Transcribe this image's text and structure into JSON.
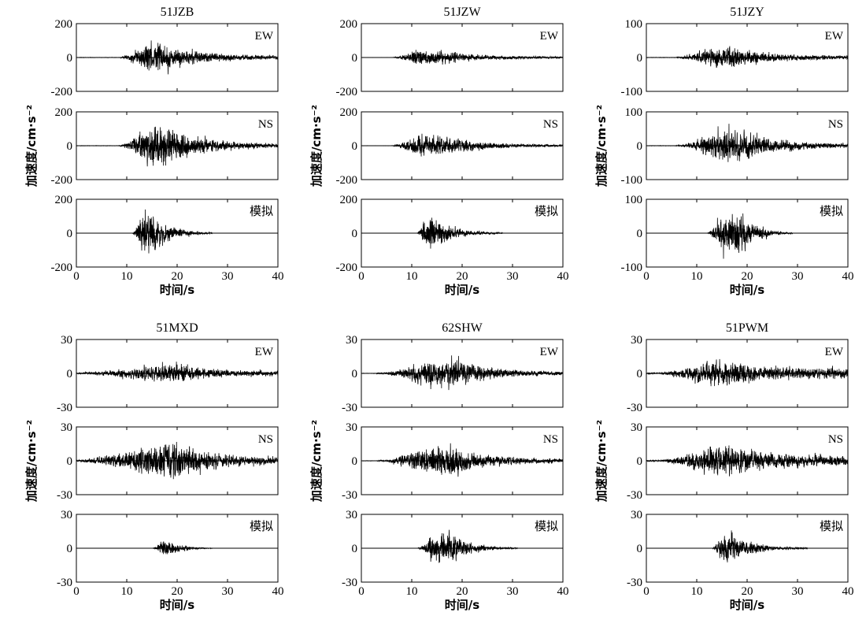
{
  "chart_data": [
    {
      "type": "line",
      "title": "51JZB",
      "xlabel": "时间/s",
      "ylabel": "加速度/cm·s⁻²",
      "xlim": [
        0,
        40
      ],
      "xticks": [
        0,
        10,
        20,
        30,
        40
      ],
      "series": [
        {
          "name": "EW",
          "ylim": [
            -200,
            200
          ],
          "yticks": [
            -200,
            0,
            200
          ],
          "envelope": {
            "onset": 8.5,
            "rise_end": 14,
            "peak": 16,
            "decay_end": 40,
            "amp_max": 135,
            "amp_tail": 12
          }
        },
        {
          "name": "NS",
          "ylim": [
            -200,
            200
          ],
          "yticks": [
            -200,
            0,
            200
          ],
          "envelope": {
            "onset": 8.5,
            "rise_end": 14,
            "peak": 17,
            "decay_end": 40,
            "amp_max": 185,
            "amp_tail": 12
          }
        },
        {
          "name": "模拟",
          "ylim": [
            -200,
            200
          ],
          "yticks": [
            -200,
            0,
            200
          ],
          "envelope": {
            "onset": 11,
            "rise_end": 13,
            "peak": 15,
            "decay_end": 27,
            "amp_max": 170,
            "amp_tail": 0
          }
        }
      ]
    },
    {
      "type": "line",
      "title": "51JZW",
      "xlabel": "时间/s",
      "ylabel": "加速度/cm·s⁻²",
      "xlim": [
        0,
        40
      ],
      "xticks": [
        0,
        10,
        20,
        30,
        40
      ],
      "series": [
        {
          "name": "EW",
          "ylim": [
            -200,
            200
          ],
          "yticks": [
            -200,
            0,
            200
          ],
          "envelope": {
            "onset": 6,
            "rise_end": 11,
            "peak": 14,
            "decay_end": 40,
            "amp_max": 70,
            "amp_tail": 6
          }
        },
        {
          "name": "NS",
          "ylim": [
            -200,
            200
          ],
          "yticks": [
            -200,
            0,
            200
          ],
          "envelope": {
            "onset": 6,
            "rise_end": 11,
            "peak": 15,
            "decay_end": 40,
            "amp_max": 95,
            "amp_tail": 6
          }
        },
        {
          "name": "模拟",
          "ylim": [
            -200,
            200
          ],
          "yticks": [
            -200,
            0,
            200
          ],
          "envelope": {
            "onset": 11,
            "rise_end": 12.5,
            "peak": 14,
            "decay_end": 28,
            "amp_max": 130,
            "amp_tail": 0
          }
        }
      ]
    },
    {
      "type": "line",
      "title": "51JZY",
      "xlabel": "时间/s",
      "ylabel": "加速度/cm·s⁻²",
      "xlim": [
        0,
        40
      ],
      "xticks": [
        0,
        10,
        20,
        30,
        40
      ],
      "series": [
        {
          "name": "EW",
          "ylim": [
            -100,
            100
          ],
          "yticks": [
            -100,
            0,
            100
          ],
          "envelope": {
            "onset": 6,
            "rise_end": 13,
            "peak": 17,
            "decay_end": 40,
            "amp_max": 45,
            "amp_tail": 7
          }
        },
        {
          "name": "NS",
          "ylim": [
            -100,
            100
          ],
          "yticks": [
            -100,
            0,
            100
          ],
          "envelope": {
            "onset": 6,
            "rise_end": 14,
            "peak": 19,
            "decay_end": 40,
            "amp_max": 68,
            "amp_tail": 7
          }
        },
        {
          "name": "模拟",
          "ylim": [
            -100,
            100
          ],
          "yticks": [
            -100,
            0,
            100
          ],
          "envelope": {
            "onset": 12,
            "rise_end": 15,
            "peak": 19,
            "decay_end": 29,
            "amp_max": 88,
            "amp_tail": 0
          }
        }
      ]
    },
    {
      "type": "line",
      "title": "51MXD",
      "xlabel": "时间/s",
      "ylabel": "加速度/cm·s⁻²",
      "xlim": [
        0,
        40
      ],
      "xticks": [
        0,
        10,
        20,
        30,
        40
      ],
      "series": [
        {
          "name": "EW",
          "ylim": [
            -30,
            30
          ],
          "yticks": [
            -30,
            0,
            30
          ],
          "envelope": {
            "onset": 0,
            "rise_end": 16,
            "peak": 20,
            "decay_end": 40,
            "amp_max": 12,
            "amp_tail": 3
          }
        },
        {
          "name": "NS",
          "ylim": [
            -30,
            30
          ],
          "yticks": [
            -30,
            0,
            30
          ],
          "envelope": {
            "onset": 0,
            "rise_end": 16,
            "peak": 21,
            "decay_end": 40,
            "amp_max": 24,
            "amp_tail": 4
          }
        },
        {
          "name": "模拟",
          "ylim": [
            -30,
            30
          ],
          "yticks": [
            -30,
            0,
            30
          ],
          "envelope": {
            "onset": 15,
            "rise_end": 17,
            "peak": 19,
            "decay_end": 27,
            "amp_max": 10,
            "amp_tail": 0
          }
        }
      ]
    },
    {
      "type": "line",
      "title": "62SHW",
      "xlabel": "时间/s",
      "ylabel": "加速度/cm·s⁻²",
      "xlim": [
        0,
        40
      ],
      "xticks": [
        0,
        10,
        20,
        30,
        40
      ],
      "series": [
        {
          "name": "EW",
          "ylim": [
            -30,
            30
          ],
          "yticks": [
            -30,
            0,
            30
          ],
          "envelope": {
            "onset": 3,
            "rise_end": 14,
            "peak": 19,
            "decay_end": 40,
            "amp_max": 18,
            "amp_tail": 2
          }
        },
        {
          "name": "NS",
          "ylim": [
            -30,
            30
          ],
          "yticks": [
            -30,
            0,
            30
          ],
          "envelope": {
            "onset": 3,
            "rise_end": 14,
            "peak": 18,
            "decay_end": 40,
            "amp_max": 20,
            "amp_tail": 2
          }
        },
        {
          "name": "模拟",
          "ylim": [
            -30,
            30
          ],
          "yticks": [
            -30,
            0,
            30
          ],
          "envelope": {
            "onset": 11,
            "rise_end": 14,
            "peak": 18,
            "decay_end": 31,
            "amp_max": 18,
            "amp_tail": 0
          }
        }
      ]
    },
    {
      "type": "line",
      "title": "51PWM",
      "xlabel": "时间/s",
      "ylabel": "加速度/cm·s⁻²",
      "xlim": [
        0,
        40
      ],
      "xticks": [
        0,
        10,
        20,
        30,
        40
      ],
      "series": [
        {
          "name": "EW",
          "ylim": [
            -30,
            30
          ],
          "yticks": [
            -30,
            0,
            30
          ],
          "envelope": {
            "onset": 3,
            "rise_end": 12,
            "peak": 17,
            "decay_end": 40,
            "amp_max": 16,
            "amp_tail": 6
          }
        },
        {
          "name": "NS",
          "ylim": [
            -30,
            30
          ],
          "yticks": [
            -30,
            0,
            30
          ],
          "envelope": {
            "onset": 3,
            "rise_end": 13,
            "peak": 17,
            "decay_end": 40,
            "amp_max": 20,
            "amp_tail": 6
          }
        },
        {
          "name": "模拟",
          "ylim": [
            -30,
            30
          ],
          "yticks": [
            -30,
            0,
            30
          ],
          "envelope": {
            "onset": 13,
            "rise_end": 15,
            "peak": 17,
            "decay_end": 32,
            "amp_max": 19,
            "amp_tail": 0
          }
        }
      ]
    }
  ]
}
